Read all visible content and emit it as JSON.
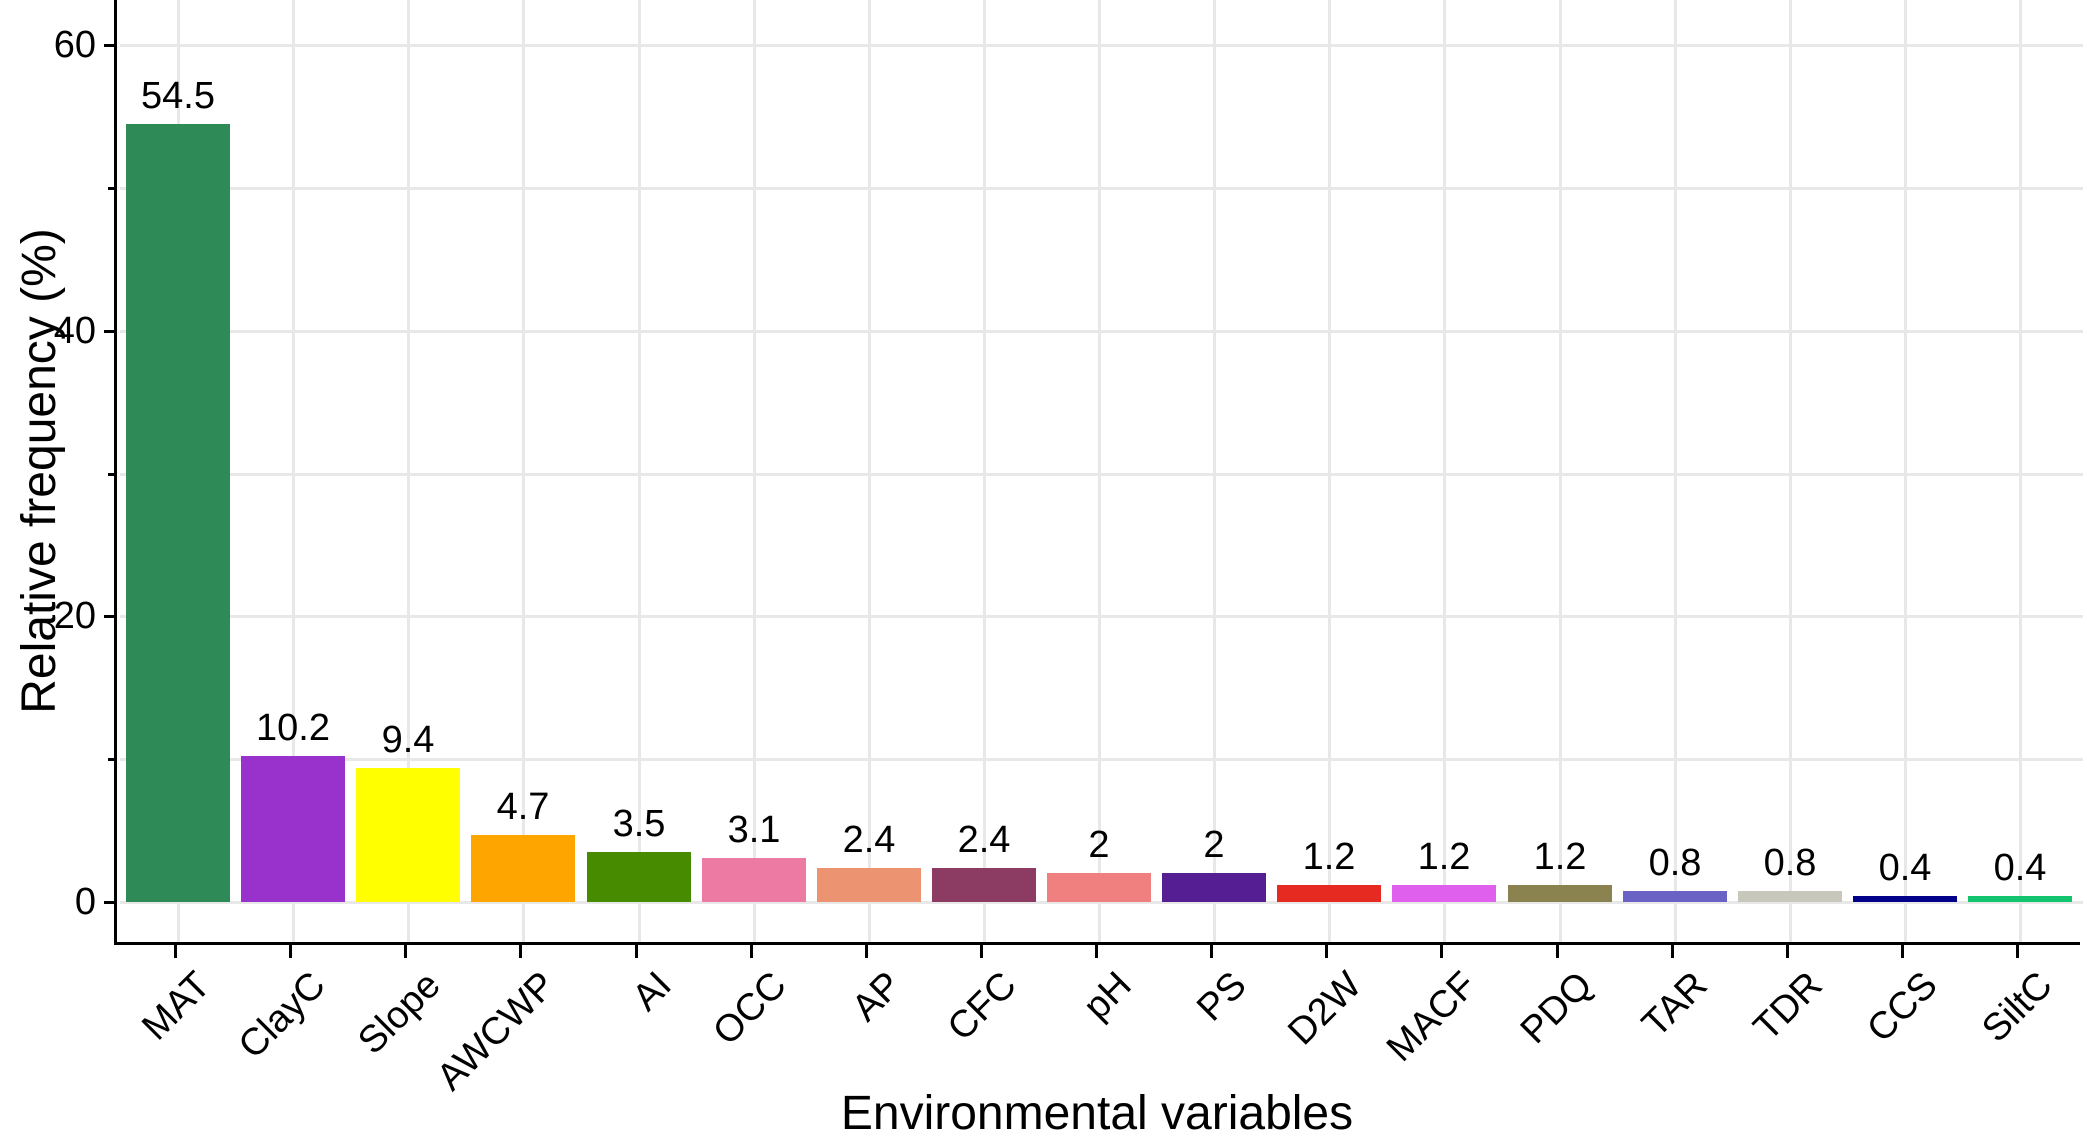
{
  "chart_data": {
    "type": "bar",
    "title": "",
    "xlabel": "Environmental variables",
    "ylabel": "Relative frequency (%)",
    "categories": [
      "MAT",
      "ClayC",
      "Slope",
      "AWCWP",
      "AI",
      "OCC",
      "AP",
      "CFC",
      "pH",
      "PS",
      "D2W",
      "MACF",
      "PDQ",
      "TAR",
      "TDR",
      "CCS",
      "SiltC"
    ],
    "values": [
      54.5,
      10.2,
      9.4,
      4.7,
      3.5,
      3.1,
      2.4,
      2.4,
      2,
      2,
      1.2,
      1.2,
      1.2,
      0.8,
      0.8,
      0.4,
      0.4
    ],
    "value_labels": [
      "54.5",
      "10.2",
      "9.4",
      "4.7",
      "3.5",
      "3.1",
      "2.4",
      "2.4",
      "2",
      "2",
      "1.2",
      "1.2",
      "1.2",
      "0.8",
      "0.8",
      "0.4",
      "0.4"
    ],
    "bar_colors": [
      "#2E8B57",
      "#9932CC",
      "#FFFF00",
      "#FFA500",
      "#478B00",
      "#EC7AA2",
      "#EC9472",
      "#8C3C62",
      "#F08080",
      "#551F93",
      "#E62A22",
      "#E060EE",
      "#8B834F",
      "#6A62C4",
      "#C8C7BC",
      "#00008B",
      "#12C46E"
    ],
    "ylim": [
      0,
      60
    ],
    "yticks_major": [
      0,
      20,
      40,
      60
    ],
    "ytick_labels": [
      "0",
      "20",
      "40",
      "60"
    ],
    "yticks_minor": [
      10,
      30,
      50
    ],
    "grid": "horizontal major+minor gridlines, vertical major gridlines at each category, light gray on white",
    "legend": "none"
  },
  "style": {
    "background": "#FFFFFF",
    "grid_color": "#E8E8E8",
    "axis_color": "#000000",
    "text_color": "#000000"
  }
}
